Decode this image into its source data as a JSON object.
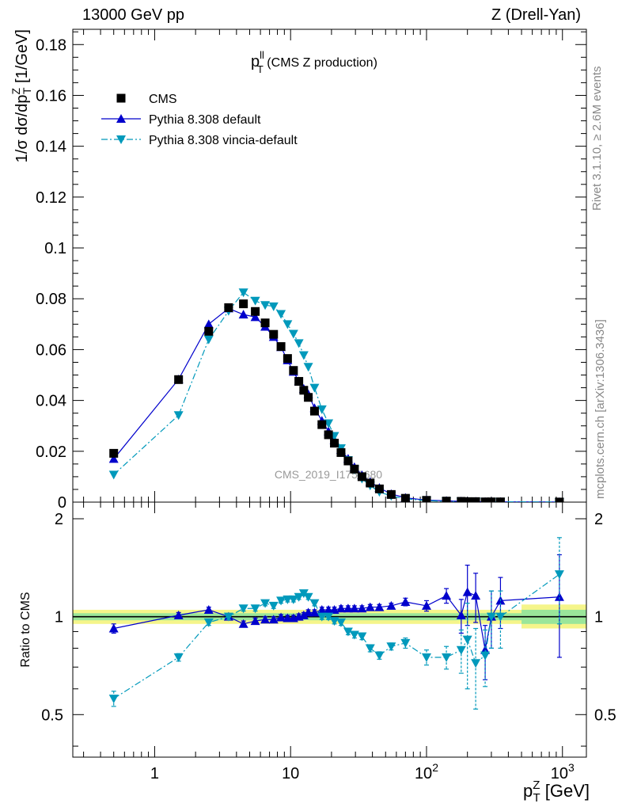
{
  "header": {
    "left": "13000 GeV pp",
    "right": "Z (Drell-Yan)"
  },
  "side_labels": {
    "top": "Rivet 3.1.10, ≥ 2.6M events",
    "bottom": "mcplots.cern.ch [arXiv:1306.3436]"
  },
  "chart_data": {
    "type": "scatter",
    "title_main": "p",
    "title_sup": "ll",
    "title_sub": "T",
    "title_rest": "(CMS Z production)",
    "watermark": "CMS_2019_I1753680",
    "xlabel": {
      "main": "p",
      "sup": "Z",
      "sub": "T",
      "unit": "[GeV]"
    },
    "ylabel_main": "1/σ dσ/dp",
    "ylabel_sup": "Z",
    "ylabel_sub": "T",
    "ylabel_unit": "[1/GeV]",
    "ratio_ylabel": "Ratio to CMS",
    "x_scale": "log",
    "xlim": [
      0.25,
      1500
    ],
    "ylim": [
      0,
      0.186
    ],
    "ratio_ylim": [
      0.37,
      2.25
    ],
    "x_ticks": [
      {
        "value": 1,
        "label": "1",
        "sup": ""
      },
      {
        "value": 10,
        "label": "10",
        "sup": ""
      },
      {
        "value": 100,
        "label": "10",
        "sup": "2"
      },
      {
        "value": 1000,
        "label": "10",
        "sup": "3"
      }
    ],
    "y_ticks": [
      {
        "value": 0,
        "label": "0"
      },
      {
        "value": 0.02,
        "label": "0.02"
      },
      {
        "value": 0.04,
        "label": "0.04"
      },
      {
        "value": 0.06,
        "label": "0.06"
      },
      {
        "value": 0.08,
        "label": "0.08"
      },
      {
        "value": 0.1,
        "label": "0.1"
      },
      {
        "value": 0.12,
        "label": "0.12"
      },
      {
        "value": 0.14,
        "label": "0.14"
      },
      {
        "value": 0.16,
        "label": "0.16"
      },
      {
        "value": 0.18,
        "label": "0.18"
      }
    ],
    "ratio_ticks": [
      {
        "value": 0.5,
        "label": "0.5"
      },
      {
        "value": 1,
        "label": "1"
      },
      {
        "value": 2,
        "label": "2"
      }
    ],
    "legend_position": "top-left",
    "colors": {
      "data": "#000000",
      "default": "#0000cc",
      "vincia": "#0099bb",
      "band_inner": "#9ae69a",
      "band_outer": "#f5f58a"
    },
    "x": [
      0.5,
      1.5,
      2.5,
      3.5,
      4.5,
      5.5,
      6.5,
      7.5,
      8.5,
      9.5,
      10.5,
      11.5,
      12.5,
      13.5,
      15,
      17,
      19,
      21,
      23.5,
      26.5,
      29.5,
      33.5,
      38.5,
      45,
      55,
      70,
      100,
      140,
      180,
      200,
      230,
      270,
      300,
      350,
      950
    ],
    "series": [
      {
        "name": "CMS",
        "marker": "square",
        "values": [
          0.0192,
          0.0482,
          0.0672,
          0.0765,
          0.078,
          0.075,
          0.0705,
          0.066,
          0.0612,
          0.0565,
          0.0518,
          0.0475,
          0.044,
          0.0412,
          0.0358,
          0.0305,
          0.0265,
          0.0232,
          0.0195,
          0.0162,
          0.013,
          0.01,
          0.0075,
          0.0052,
          0.003,
          0.0015,
          0.0007,
          0.0004,
          0.0003,
          0.0002,
          0.0002,
          0.0001,
          0.0001,
          0.0001,
          3e-05
        ],
        "ratio": [
          1,
          1,
          1,
          1,
          1,
          1,
          1,
          1,
          1,
          1,
          1,
          1,
          1,
          1,
          1,
          1,
          1,
          1,
          1,
          1,
          1,
          1,
          1,
          1,
          1,
          1,
          1,
          1,
          1,
          1,
          1,
          1,
          1,
          1,
          1
        ]
      },
      {
        "name": "Pythia 8.308 default",
        "marker": "triangle-up",
        "line": "solid",
        "values": [
          0.017,
          0.0483,
          0.07,
          0.0762,
          0.0738,
          0.0728,
          0.069,
          0.065,
          0.061,
          0.0558,
          0.0513,
          0.0475,
          0.0446,
          0.0425,
          0.037,
          0.032,
          0.0279,
          0.0244,
          0.0206,
          0.0171,
          0.0138,
          0.0106,
          0.008,
          0.0056,
          0.0032,
          0.0017,
          0.0008,
          0.0005,
          0.0003,
          0.0002,
          0.0002,
          0.0001,
          0.0001,
          0.0001,
          3e-05
        ],
        "ratio": [
          0.92,
          1.01,
          1.05,
          1.0,
          0.95,
          0.97,
          0.98,
          0.98,
          0.995,
          0.99,
          0.99,
          1.0,
          1.01,
          1.03,
          1.03,
          1.05,
          1.05,
          1.05,
          1.06,
          1.06,
          1.06,
          1.06,
          1.07,
          1.07,
          1.08,
          1.11,
          1.08,
          1.16,
          1.01,
          1.19,
          1.16,
          0.79,
          1.0,
          1.12,
          1.15
        ],
        "ratio_err": [
          0.03,
          0.02,
          0.02,
          0.02,
          0.02,
          0.02,
          0.02,
          0.02,
          0.02,
          0.02,
          0.02,
          0.02,
          0.02,
          0.02,
          0.02,
          0.02,
          0.02,
          0.02,
          0.02,
          0.02,
          0.02,
          0.02,
          0.02,
          0.02,
          0.02,
          0.03,
          0.04,
          0.06,
          0.12,
          0.25,
          0.2,
          0.15,
          0.2,
          0.2,
          0.4
        ]
      },
      {
        "name": "Pythia 8.308 vincia-default",
        "marker": "triangle-down",
        "line": "dashdot",
        "values": [
          0.0108,
          0.0342,
          0.064,
          0.0752,
          0.0825,
          0.0792,
          0.0775,
          0.077,
          0.074,
          0.07,
          0.0662,
          0.0625,
          0.0578,
          0.0532,
          0.045,
          0.0365,
          0.031,
          0.026,
          0.0212,
          0.0165,
          0.0128,
          0.0092,
          0.0065,
          0.004,
          0.0024,
          0.0013,
          0.0006,
          0.0003,
          0.0002,
          0.00015,
          0.00012,
          0.0001,
          0.0001,
          0.0001,
          3e-05
        ],
        "ratio": [
          0.56,
          0.75,
          0.96,
          1.0,
          1.06,
          1.06,
          1.1,
          1.08,
          1.12,
          1.13,
          1.13,
          1.15,
          1.18,
          1.15,
          1.1,
          1.0,
          1.0,
          0.97,
          0.96,
          0.9,
          0.88,
          0.87,
          0.8,
          0.76,
          0.81,
          0.83,
          0.75,
          0.75,
          0.79,
          0.85,
          0.72,
          0.76,
          1.0,
          1.0,
          1.35
        ],
        "ratio_err": [
          0.03,
          0.02,
          0.02,
          0.02,
          0.02,
          0.02,
          0.02,
          0.02,
          0.02,
          0.02,
          0.02,
          0.02,
          0.02,
          0.02,
          0.02,
          0.02,
          0.02,
          0.02,
          0.02,
          0.02,
          0.02,
          0.02,
          0.02,
          0.02,
          0.02,
          0.03,
          0.04,
          0.06,
          0.12,
          0.25,
          0.2,
          0.15,
          0.2,
          0.2,
          0.4
        ]
      }
    ]
  }
}
